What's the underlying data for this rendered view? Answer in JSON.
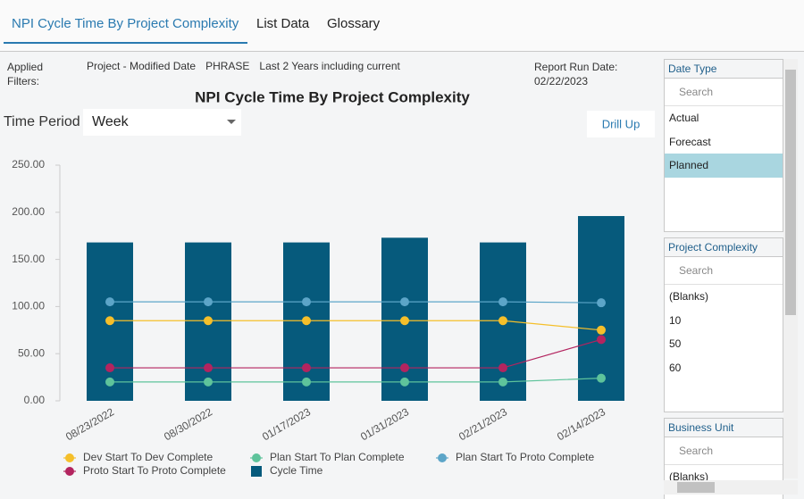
{
  "tabs": [
    "NPI Cycle Time By Project Complexity",
    "List Data",
    "Glossary"
  ],
  "active_tab": 0,
  "filters": {
    "label": "Applied Filters:",
    "items": [
      "Project - Modified Date",
      "PHRASE",
      "Last 2 Years including current"
    ],
    "run_date_label": "Report Run Date:",
    "run_date": "02/22/2023"
  },
  "controls": {
    "time_period_label": "Time Period",
    "time_period": "Week",
    "drill_up": "Drill Up"
  },
  "chart_data": {
    "type": "combo",
    "title": "NPI Cycle Time By Project Complexity",
    "categories": [
      "08/23/2022",
      "08/30/2022",
      "01/17/2023",
      "01/31/2023",
      "02/21/2023",
      "02/14/2023"
    ],
    "ylim": [
      0,
      250
    ],
    "yticks": [
      {
        "value": 0,
        "label": "0.00"
      },
      {
        "value": 50,
        "label": "50.00"
      },
      {
        "value": 100,
        "label": "100.00"
      },
      {
        "value": 150,
        "label": "150.00"
      },
      {
        "value": 200,
        "label": "200.00"
      },
      {
        "value": 250,
        "label": "250.00"
      }
    ],
    "series": [
      {
        "name": "Dev Start To Dev Complete",
        "type": "line",
        "color": "#f5bf2a",
        "values": [
          85,
          85,
          85,
          85,
          85,
          75
        ]
      },
      {
        "name": "Plan Start To Plan Complete",
        "type": "line",
        "color": "#5ec39b",
        "values": [
          20,
          20,
          20,
          20,
          20,
          24
        ]
      },
      {
        "name": "Plan Start To Proto Complete",
        "type": "line",
        "color": "#5ca5c8",
        "values": [
          105,
          105,
          105,
          105,
          105,
          104
        ]
      },
      {
        "name": "Proto Start To Proto Complete",
        "type": "line",
        "color": "#b3245f",
        "values": [
          35,
          35,
          35,
          35,
          35,
          65
        ]
      },
      {
        "name": "Cycle Time",
        "type": "bar",
        "color": "#065a7c",
        "values": [
          168,
          168,
          168,
          173,
          168,
          196
        ]
      }
    ]
  },
  "slicers": [
    {
      "title": "Date Type",
      "search": "Search",
      "items": [
        "Actual",
        "Forecast",
        "Planned"
      ],
      "selected": 2
    },
    {
      "title": "Project Complexity",
      "search": "Search",
      "items": [
        "(Blanks)",
        "10",
        "50",
        "60"
      ]
    },
    {
      "title": "Business Unit",
      "search": "Search",
      "items": [
        "(Blanks)"
      ]
    }
  ]
}
